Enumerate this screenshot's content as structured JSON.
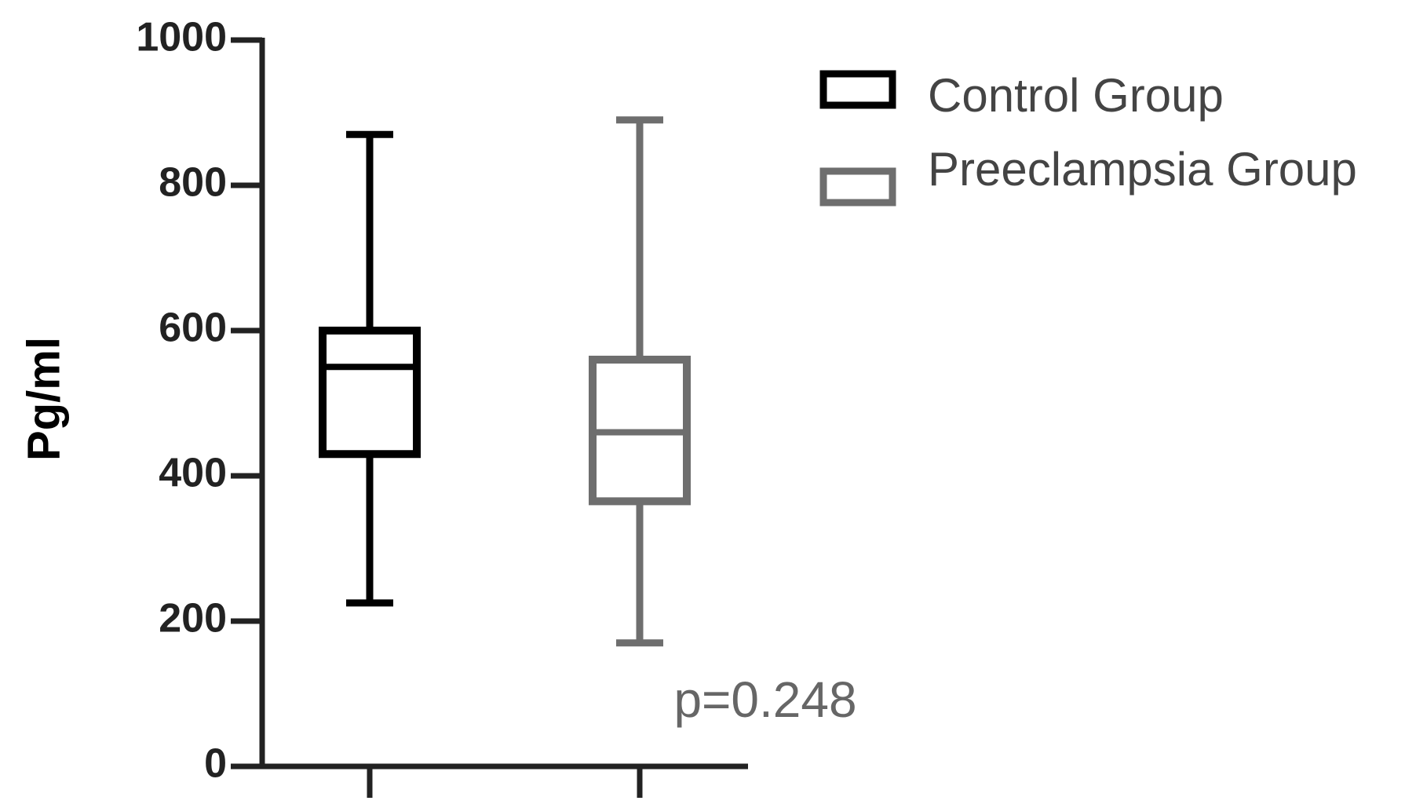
{
  "chart_data": {
    "type": "box",
    "y_label": "Pg/ml",
    "annotation": "p=0.248",
    "categories": [
      null,
      null
    ],
    "series": [
      {
        "name": "Control Group",
        "color": "#000000",
        "min": 225,
        "q1": 430,
        "median": 550,
        "q3": 600,
        "max": 870
      },
      {
        "name": "Preeclampsia Group",
        "color": "#6e6e6e",
        "min": 170,
        "q1": 365,
        "median": 460,
        "q3": 560,
        "max": 890
      }
    ],
    "ylim": [
      0,
      1000
    ],
    "yticks": [
      0,
      200,
      400,
      600,
      800,
      1000
    ],
    "grid": false,
    "legend": "top-right"
  }
}
